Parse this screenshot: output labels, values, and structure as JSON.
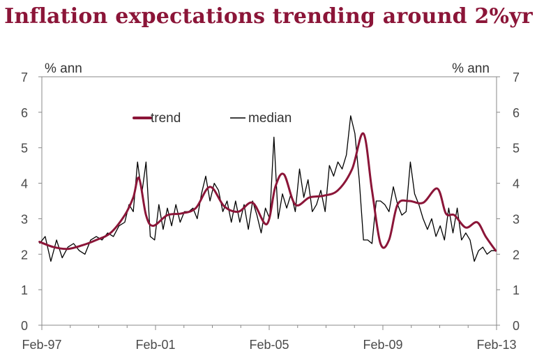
{
  "chart_data": {
    "type": "line",
    "title": "Inflation expectations trending around 2%yr",
    "ylabel_left": "% ann",
    "ylabel_right": "% ann",
    "ylim": [
      0,
      7
    ],
    "yticks": [
      0,
      1,
      2,
      3,
      4,
      5,
      6,
      7
    ],
    "x_range": [
      1997.083,
      2013.083
    ],
    "x_ticks": [
      {
        "label": "Feb-97",
        "x": 1997.083
      },
      {
        "label": "Feb-01",
        "x": 2001.083
      },
      {
        "label": "Feb-05",
        "x": 2005.083
      },
      {
        "label": "Feb-09",
        "x": 2009.083
      },
      {
        "label": "Feb-13",
        "x": 2013.083
      }
    ],
    "legend": {
      "position": "top-left",
      "entries": [
        "trend",
        "median"
      ]
    },
    "colors": {
      "trend": "#8b1538",
      "median": "#000000",
      "title": "#8b1538",
      "axis": "#888888"
    },
    "series": [
      {
        "name": "median",
        "x": [
          1997.0,
          1997.2,
          1997.4,
          1997.6,
          1997.8,
          1998.0,
          1998.2,
          1998.4,
          1998.6,
          1998.8,
          1999.0,
          1999.2,
          1999.4,
          1999.6,
          1999.8,
          2000.0,
          2000.15,
          2000.3,
          2000.45,
          2000.6,
          2000.75,
          2000.9,
          2001.05,
          2001.2,
          2001.35,
          2001.5,
          2001.65,
          2001.8,
          2001.95,
          2002.1,
          2002.25,
          2002.4,
          2002.55,
          2002.7,
          2002.85,
          2003.0,
          2003.15,
          2003.3,
          2003.45,
          2003.6,
          2003.75,
          2003.9,
          2004.05,
          2004.2,
          2004.35,
          2004.5,
          2004.65,
          2004.8,
          2004.95,
          2005.1,
          2005.25,
          2005.4,
          2005.55,
          2005.7,
          2005.85,
          2006.0,
          2006.15,
          2006.3,
          2006.45,
          2006.6,
          2006.75,
          2006.9,
          2007.05,
          2007.2,
          2007.35,
          2007.5,
          2007.65,
          2007.8,
          2007.95,
          2008.1,
          2008.25,
          2008.4,
          2008.55,
          2008.7,
          2008.85,
          2009.0,
          2009.15,
          2009.3,
          2009.45,
          2009.6,
          2009.75,
          2009.9,
          2010.05,
          2010.2,
          2010.35,
          2010.5,
          2010.65,
          2010.8,
          2010.95,
          2011.1,
          2011.25,
          2011.4,
          2011.55,
          2011.7,
          2011.85,
          2012.0,
          2012.15,
          2012.3,
          2012.45,
          2012.6,
          2012.75,
          2012.9,
          2013.05
        ],
        "values": [
          2.3,
          2.5,
          1.8,
          2.4,
          1.9,
          2.2,
          2.3,
          2.1,
          2.0,
          2.4,
          2.5,
          2.4,
          2.6,
          2.5,
          2.8,
          2.9,
          3.4,
          3.2,
          4.6,
          3.7,
          4.6,
          2.5,
          2.4,
          3.4,
          2.7,
          3.3,
          2.8,
          3.4,
          2.9,
          3.2,
          3.2,
          3.3,
          3.0,
          3.7,
          4.2,
          3.5,
          4.0,
          3.8,
          3.2,
          3.5,
          2.9,
          3.5,
          2.9,
          3.4,
          2.7,
          3.5,
          3.1,
          2.6,
          3.3,
          3.0,
          5.3,
          3.0,
          3.7,
          3.3,
          3.7,
          3.2,
          4.4,
          3.6,
          4.1,
          3.2,
          3.4,
          3.8,
          3.2,
          4.5,
          4.2,
          4.6,
          4.4,
          4.8,
          5.9,
          5.4,
          4.1,
          2.4,
          2.4,
          2.3,
          3.5,
          3.5,
          3.4,
          3.2,
          3.9,
          3.4,
          3.1,
          3.2,
          4.6,
          3.7,
          3.4,
          3.0,
          2.7,
          3.0,
          2.5,
          2.8,
          2.4,
          3.3,
          2.6,
          3.3,
          2.4,
          2.6,
          2.4,
          1.8,
          2.1,
          2.2,
          2.0,
          2.1,
          2.1
        ]
      },
      {
        "name": "trend",
        "x": [
          1997.0,
          1997.5,
          1998.0,
          1998.5,
          1999.0,
          1999.5,
          2000.0,
          2000.3,
          2000.5,
          2000.75,
          2001.0,
          2001.5,
          2002.0,
          2002.5,
          2003.0,
          2003.5,
          2004.0,
          2004.5,
          2005.0,
          2005.3,
          2005.6,
          2006.0,
          2006.5,
          2007.0,
          2007.5,
          2008.0,
          2008.4,
          2008.7,
          2009.0,
          2009.3,
          2009.6,
          2010.0,
          2010.5,
          2011.0,
          2011.3,
          2011.6,
          2012.0,
          2012.4,
          2012.7,
          2013.05
        ],
        "values": [
          2.35,
          2.2,
          2.15,
          2.25,
          2.4,
          2.6,
          3.1,
          3.6,
          4.15,
          3.1,
          2.8,
          3.1,
          3.15,
          3.3,
          3.9,
          3.35,
          3.2,
          3.45,
          2.85,
          3.9,
          4.25,
          3.4,
          3.6,
          3.65,
          3.8,
          4.4,
          5.4,
          3.8,
          2.3,
          2.4,
          3.4,
          3.5,
          3.45,
          3.85,
          3.15,
          3.1,
          2.75,
          2.9,
          2.5,
          2.1
        ]
      }
    ]
  }
}
